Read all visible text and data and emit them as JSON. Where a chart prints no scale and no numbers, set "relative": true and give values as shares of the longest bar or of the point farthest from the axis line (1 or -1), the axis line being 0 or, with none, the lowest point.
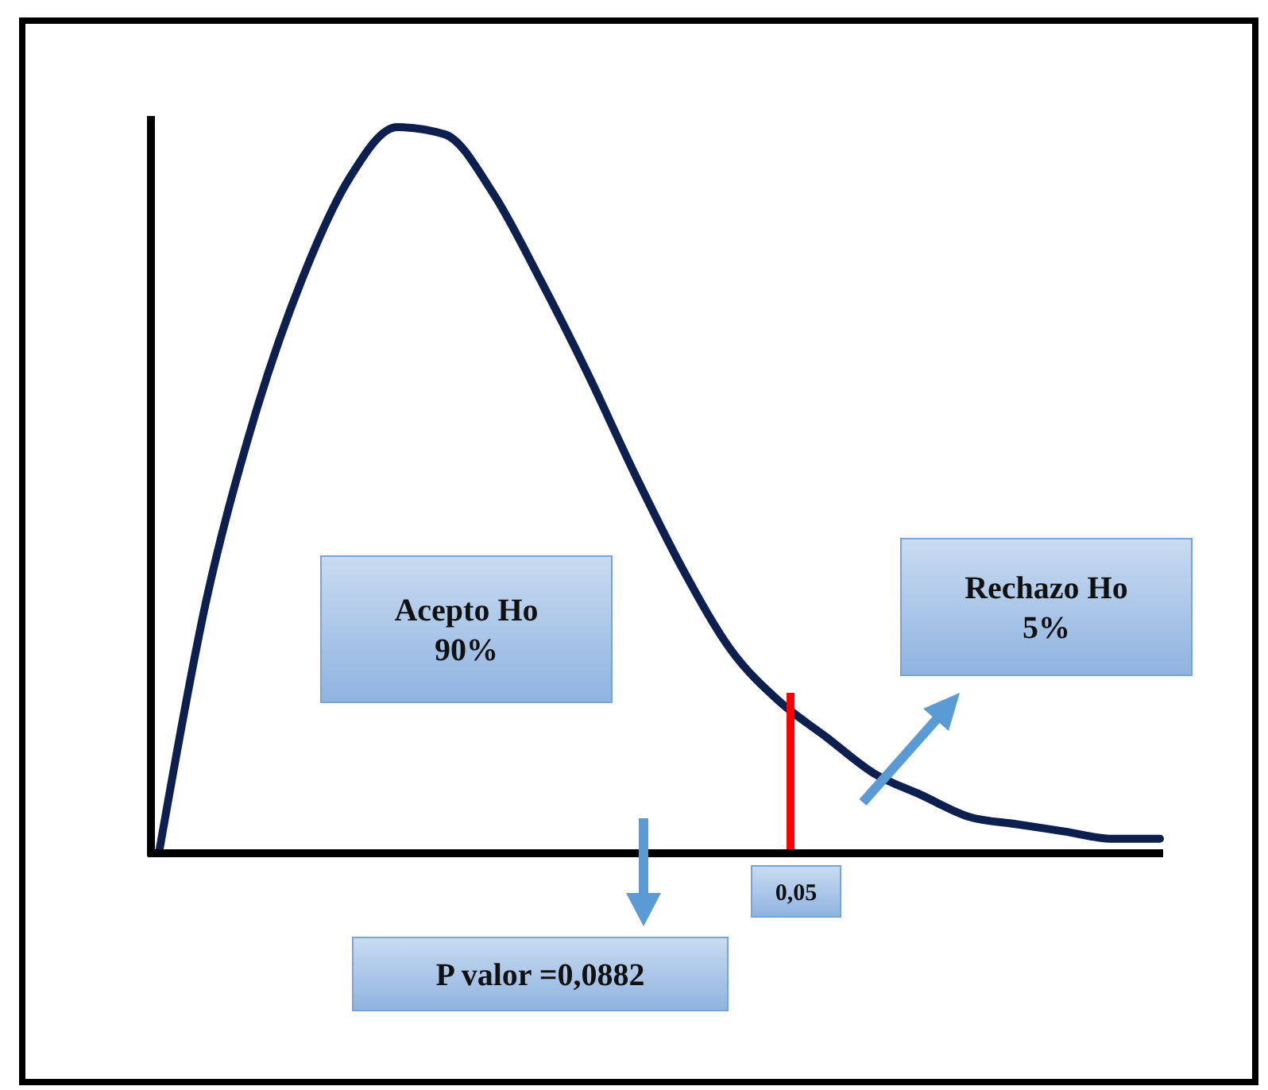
{
  "chart_data": {
    "type": "line",
    "relative": true,
    "categories": [
      null,
      null,
      null,
      null,
      null,
      null,
      null,
      null,
      null,
      null,
      null,
      null,
      null,
      null,
      null,
      null,
      null,
      null,
      null,
      null,
      null,
      null
    ],
    "series": [
      {
        "color": "#0d1f4f",
        "values": [
          0,
          0.35,
          0.6,
          0.79,
          0.93,
          1.0,
          0.99,
          0.91,
          0.79,
          0.66,
          0.52,
          0.39,
          0.28,
          0.21,
          0.16,
          0.11,
          0.08,
          0.05,
          0.04,
          0.03,
          0.02,
          0.02
        ]
      }
    ],
    "annotations": [
      "Acepto Ho\n90%",
      "Rechazo Ho\n5%",
      "P valor =0,0882",
      "0,05"
    ],
    "marker": "none",
    "line_style": "solid"
  }
}
